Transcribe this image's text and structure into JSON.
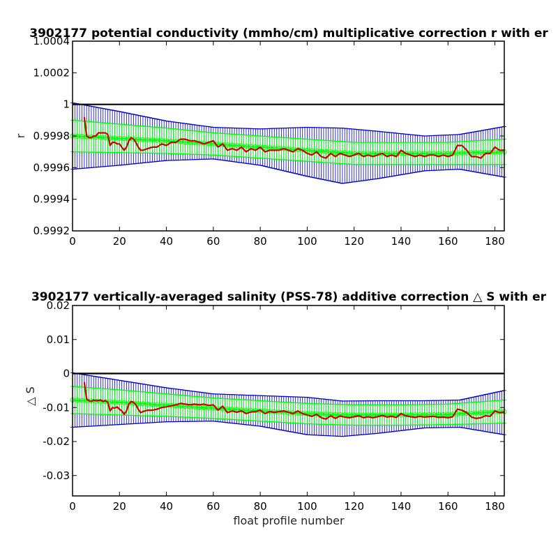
{
  "colors": {
    "error_bars": "#0000cc",
    "model_fit": "#00ff00",
    "correction": "#cc0000",
    "zero_line": "#000000",
    "axes": "#000000"
  },
  "chart_data": [
    {
      "type": "line",
      "title": "3902177 potential conductivity (mmho/cm) multiplicative correction r with er",
      "xlabel": "",
      "ylabel": "r",
      "xlim": [
        0,
        184
      ],
      "ylim": [
        0.9992,
        1.0004
      ],
      "xticks": [
        0,
        20,
        40,
        60,
        80,
        100,
        120,
        140,
        160,
        180
      ],
      "xtick_labels": [
        "0",
        "20",
        "40",
        "60",
        "80",
        "100",
        "120",
        "140",
        "160",
        "180"
      ],
      "yticks": [
        0.9992,
        0.9994,
        0.9996,
        0.9998,
        1,
        1.0002,
        1.0004
      ],
      "ytick_labels": [
        "0.9992",
        "0.9994",
        "0.9996",
        "0.9998",
        "1",
        "1.0002",
        "1.0004"
      ],
      "reference_line": 1,
      "error_band": {
        "x": [
          0,
          20,
          40,
          60,
          80,
          100,
          115,
          130,
          150,
          165,
          184
        ],
        "center": [
          0.9998,
          0.999785,
          0.99977,
          0.999755,
          0.99973,
          0.9997,
          0.999675,
          0.99968,
          0.99969,
          0.9997,
          0.9997
        ],
        "halfwidth": [
          0.00021,
          0.00017,
          0.000125,
          0.0001,
          0.000115,
          0.000155,
          0.000175,
          0.00015,
          0.00011,
          0.00011,
          0.00016
        ]
      },
      "model_fit": {
        "x": [
          0,
          20,
          40,
          60,
          80,
          100,
          120,
          140,
          160,
          184
        ],
        "mean": [
          0.9998,
          0.999785,
          0.99977,
          0.99975,
          0.99973,
          0.99971,
          0.99969,
          0.99969,
          0.99969,
          0.9997
        ],
        "halfwidth": [
          0.0001,
          9e-05,
          8e-05,
          7e-05,
          7e-05,
          7e-05,
          7e-05,
          7e-05,
          7e-05,
          8e-05
        ]
      },
      "correction": {
        "x": [
          5,
          6,
          7,
          8,
          9,
          10,
          11,
          12,
          13,
          14,
          15,
          16,
          17,
          18,
          19,
          20,
          21,
          22,
          23,
          24,
          25,
          26,
          27,
          28,
          29,
          30,
          32,
          34,
          36,
          38,
          40,
          42,
          44,
          46,
          48,
          50,
          52,
          54,
          56,
          58,
          60,
          62,
          64,
          66,
          68,
          70,
          72,
          74,
          76,
          78,
          80,
          82,
          84,
          86,
          88,
          90,
          92,
          94,
          96,
          98,
          100,
          102,
          104,
          106,
          108,
          110,
          112,
          114,
          116,
          118,
          120,
          122,
          124,
          126,
          128,
          130,
          132,
          134,
          136,
          138,
          140,
          142,
          144,
          146,
          148,
          150,
          152,
          154,
          156,
          158,
          160,
          162,
          164,
          166,
          168,
          170,
          172,
          174,
          176,
          178,
          180,
          182,
          184
        ],
        "values": [
          0.99992,
          0.9998,
          0.99979,
          0.99979,
          0.9998,
          0.9998,
          0.99982,
          0.99982,
          0.99982,
          0.99982,
          0.99981,
          0.99974,
          0.99976,
          0.99976,
          0.99975,
          0.99975,
          0.99973,
          0.99971,
          0.99973,
          0.99977,
          0.99979,
          0.99978,
          0.99976,
          0.99973,
          0.99971,
          0.99971,
          0.99972,
          0.99973,
          0.99973,
          0.99975,
          0.99974,
          0.99976,
          0.99976,
          0.99978,
          0.99978,
          0.99977,
          0.99977,
          0.99976,
          0.99975,
          0.99976,
          0.99977,
          0.99973,
          0.99975,
          0.99971,
          0.99972,
          0.99971,
          0.99973,
          0.9997,
          0.99972,
          0.99971,
          0.99973,
          0.9997,
          0.99971,
          0.99971,
          0.99971,
          0.99972,
          0.99971,
          0.9997,
          0.99972,
          0.99971,
          0.99969,
          0.99968,
          0.9997,
          0.99967,
          0.99966,
          0.99969,
          0.99967,
          0.99969,
          0.99968,
          0.99967,
          0.99968,
          0.99969,
          0.99967,
          0.99968,
          0.99967,
          0.99968,
          0.99969,
          0.99967,
          0.99968,
          0.99967,
          0.99971,
          0.99969,
          0.99968,
          0.99967,
          0.99968,
          0.99967,
          0.99968,
          0.99968,
          0.99967,
          0.99968,
          0.99967,
          0.99968,
          0.99974,
          0.99974,
          0.99971,
          0.99967,
          0.99967,
          0.99966,
          0.99969,
          0.99969,
          0.99973,
          0.99971,
          0.99971
        ]
      }
    },
    {
      "type": "line",
      "title": "3902177 vertically-averaged salinity (PSS-78) additive correction △ S with er",
      "xlabel": "float profile number",
      "ylabel": "△ S",
      "xlim": [
        0,
        184
      ],
      "ylim": [
        -0.036,
        0.02
      ],
      "xticks": [
        0,
        20,
        40,
        60,
        80,
        100,
        120,
        140,
        160,
        180
      ],
      "xtick_labels": [
        "0",
        "20",
        "40",
        "60",
        "80",
        "100",
        "120",
        "140",
        "160",
        "180"
      ],
      "yticks": [
        -0.03,
        -0.02,
        -0.01,
        0,
        0.01,
        0.02
      ],
      "ytick_labels": [
        "-0.03",
        "-0.02",
        "-0.01",
        "0",
        "0.01",
        "0.02"
      ],
      "reference_line": 0,
      "error_band": {
        "x": [
          0,
          20,
          40,
          60,
          80,
          100,
          115,
          130,
          150,
          165,
          184
        ],
        "center": [
          -0.0078,
          -0.0085,
          -0.0092,
          -0.01,
          -0.011,
          -0.0125,
          -0.0133,
          -0.0128,
          -0.012,
          -0.0118,
          -0.0115
        ],
        "halfwidth": [
          0.008,
          0.0065,
          0.005,
          0.004,
          0.0045,
          0.0055,
          0.0052,
          0.0048,
          0.004,
          0.004,
          0.0065
        ]
      },
      "model_fit": {
        "x": [
          0,
          20,
          40,
          60,
          80,
          100,
          120,
          140,
          160,
          184
        ],
        "mean": [
          -0.0078,
          -0.0085,
          -0.0093,
          -0.0102,
          -0.011,
          -0.0118,
          -0.0122,
          -0.0122,
          -0.012,
          -0.0112
        ],
        "halfwidth": [
          0.004,
          0.0037,
          0.0033,
          0.003,
          0.003,
          0.003,
          0.003,
          0.003,
          0.003,
          0.0034
        ]
      },
      "correction": {
        "x": [
          5,
          6,
          7,
          8,
          9,
          10,
          11,
          12,
          13,
          14,
          15,
          16,
          17,
          18,
          19,
          20,
          21,
          22,
          23,
          24,
          25,
          26,
          27,
          28,
          29,
          30,
          32,
          34,
          36,
          38,
          40,
          42,
          44,
          46,
          48,
          50,
          52,
          54,
          56,
          58,
          60,
          62,
          64,
          66,
          68,
          70,
          72,
          74,
          76,
          78,
          80,
          82,
          84,
          86,
          88,
          90,
          92,
          94,
          96,
          98,
          100,
          102,
          104,
          106,
          108,
          110,
          112,
          114,
          116,
          118,
          120,
          122,
          124,
          126,
          128,
          130,
          132,
          134,
          136,
          138,
          140,
          142,
          144,
          146,
          148,
          150,
          152,
          154,
          156,
          158,
          160,
          162,
          164,
          166,
          168,
          170,
          172,
          174,
          176,
          178,
          180,
          182,
          184
        ],
        "values": [
          -0.0025,
          -0.0075,
          -0.008,
          -0.0082,
          -0.0078,
          -0.008,
          -0.0079,
          -0.0078,
          -0.0082,
          -0.008,
          -0.0085,
          -0.011,
          -0.01,
          -0.0102,
          -0.0098,
          -0.0105,
          -0.011,
          -0.012,
          -0.011,
          -0.009,
          -0.0082,
          -0.0085,
          -0.0092,
          -0.0105,
          -0.0115,
          -0.0112,
          -0.0108,
          -0.0108,
          -0.0105,
          -0.01,
          -0.0098,
          -0.0095,
          -0.0092,
          -0.0088,
          -0.009,
          -0.0092,
          -0.009,
          -0.0092,
          -0.009,
          -0.0094,
          -0.0092,
          -0.0108,
          -0.0096,
          -0.0115,
          -0.011,
          -0.0114,
          -0.011,
          -0.0118,
          -0.0113,
          -0.0112,
          -0.0108,
          -0.0118,
          -0.0112,
          -0.0114,
          -0.0112,
          -0.011,
          -0.0114,
          -0.0118,
          -0.011,
          -0.0118,
          -0.0122,
          -0.0126,
          -0.012,
          -0.013,
          -0.0134,
          -0.0124,
          -0.0132,
          -0.0125,
          -0.0128,
          -0.013,
          -0.0127,
          -0.0124,
          -0.013,
          -0.0127,
          -0.013,
          -0.0127,
          -0.0123,
          -0.0128,
          -0.0126,
          -0.0129,
          -0.0118,
          -0.0124,
          -0.0127,
          -0.0129,
          -0.0126,
          -0.0128,
          -0.0127,
          -0.0126,
          -0.0129,
          -0.0128,
          -0.013,
          -0.0127,
          -0.0105,
          -0.0108,
          -0.0115,
          -0.0128,
          -0.0132,
          -0.013,
          -0.0124,
          -0.0126,
          -0.011,
          -0.0115,
          -0.0114
        ]
      }
    }
  ]
}
